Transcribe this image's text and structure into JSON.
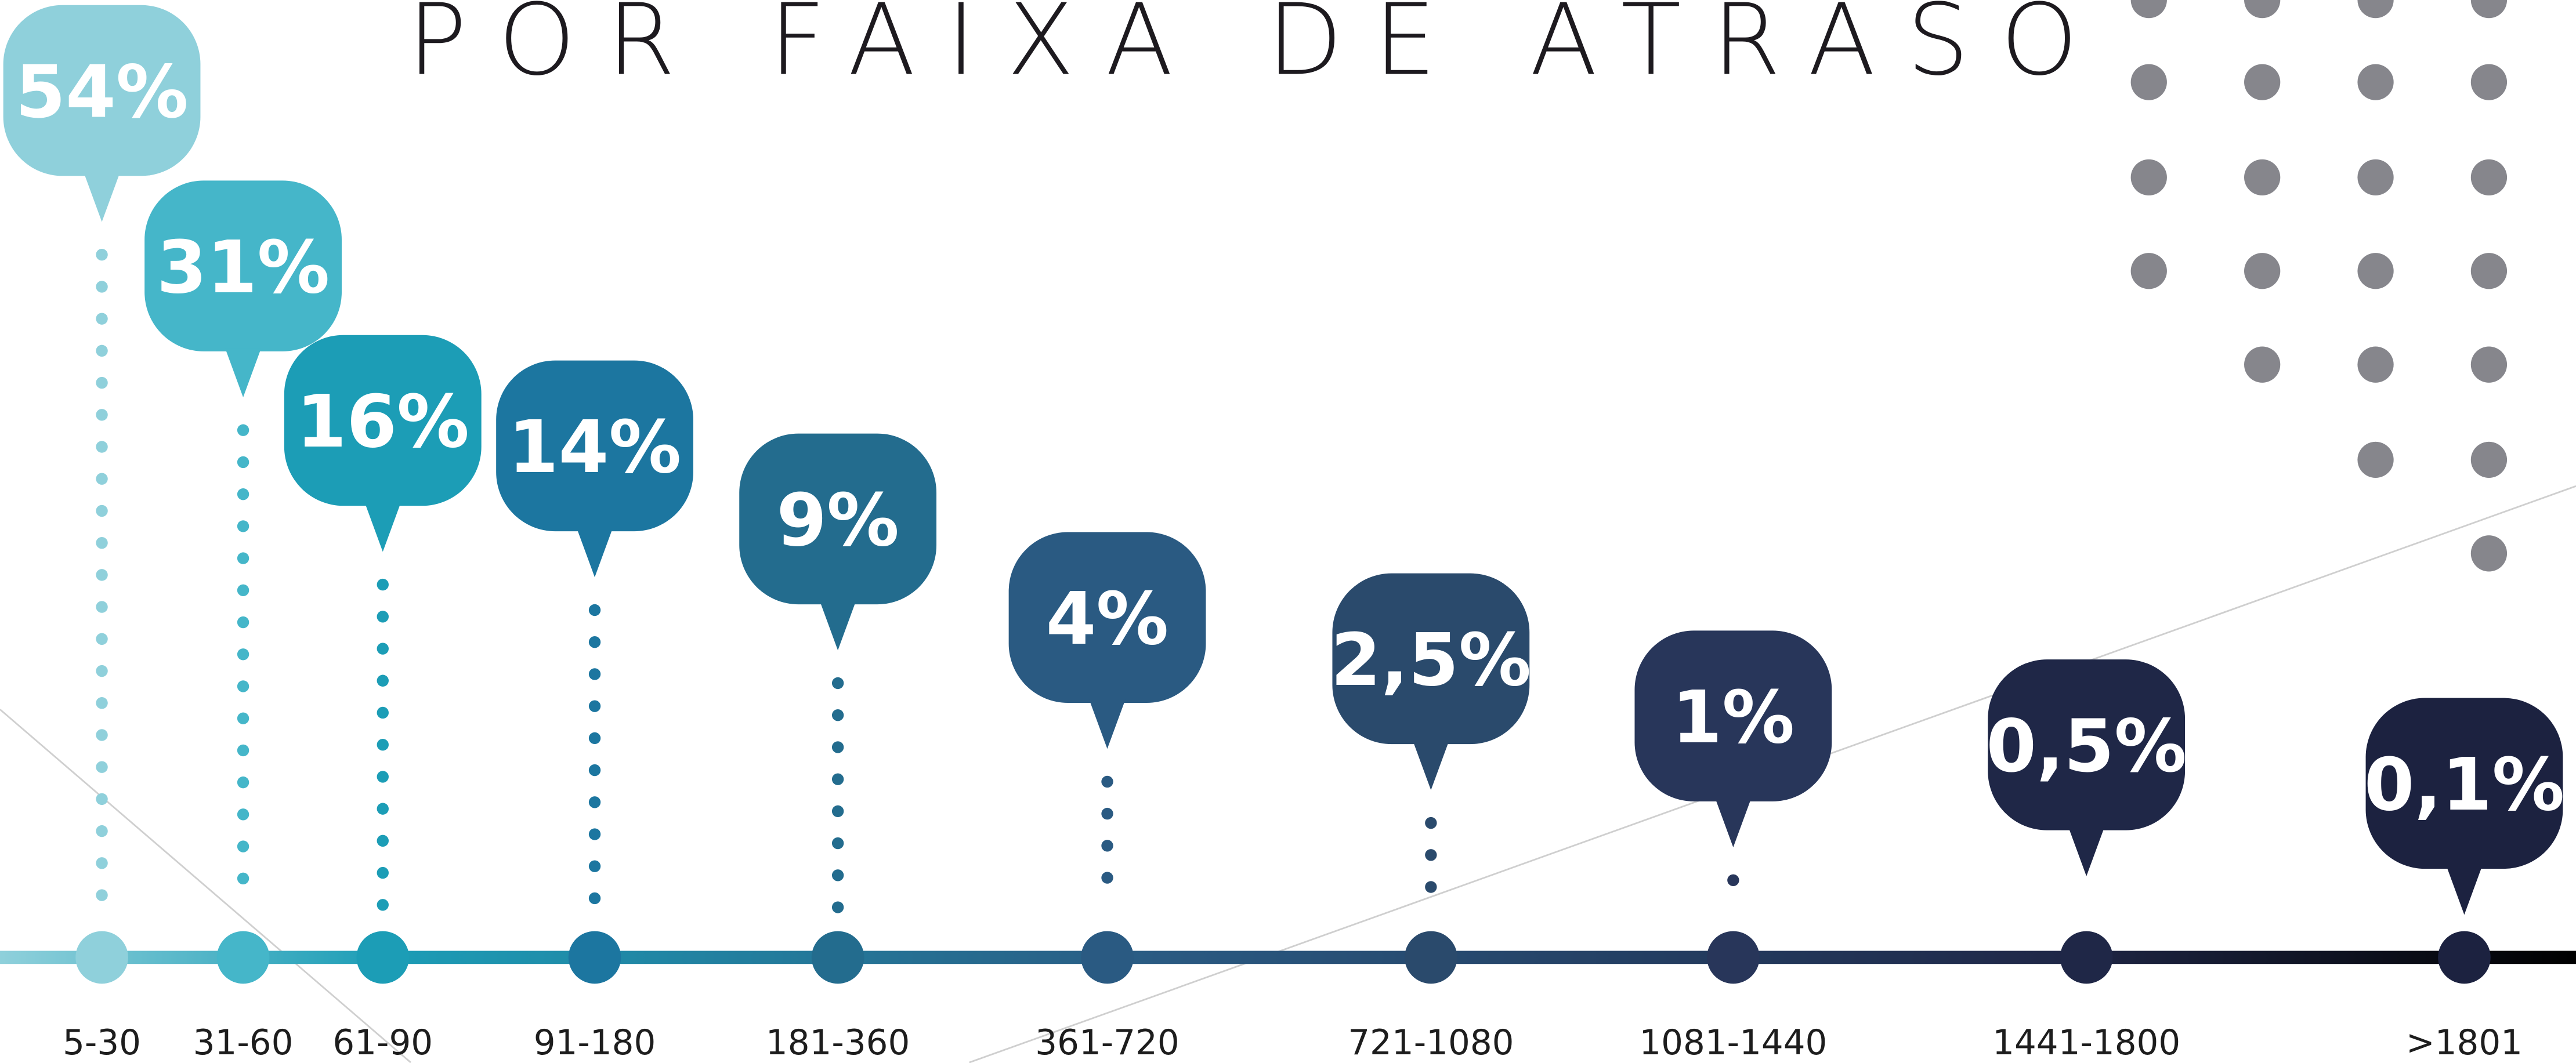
{
  "chart_data": {
    "type": "timeline",
    "title": "POR FAIXA DE ATRASO",
    "categories": [
      "5-30",
      "31-60",
      "61-90",
      "91-180",
      "181-360",
      "361-720",
      "721-1080",
      "1081-1440",
      "1441-1800",
      ">1801"
    ],
    "values": [
      54,
      31,
      16,
      14,
      9,
      4,
      2.5,
      1,
      0.5,
      0.1
    ],
    "value_labels": [
      "54%",
      "31%",
      "16%",
      "14%",
      "9%",
      "4%",
      "2,5%",
      "1%",
      "0,5%",
      "0,1%"
    ],
    "colors": [
      "#8fd0db",
      "#45b6c9",
      "#1c9db6",
      "#1c76a0",
      "#236c8e",
      "#2a5a82",
      "#2a4a6c",
      "#28365a",
      "#1f2747",
      "#1c2240"
    ]
  }
}
